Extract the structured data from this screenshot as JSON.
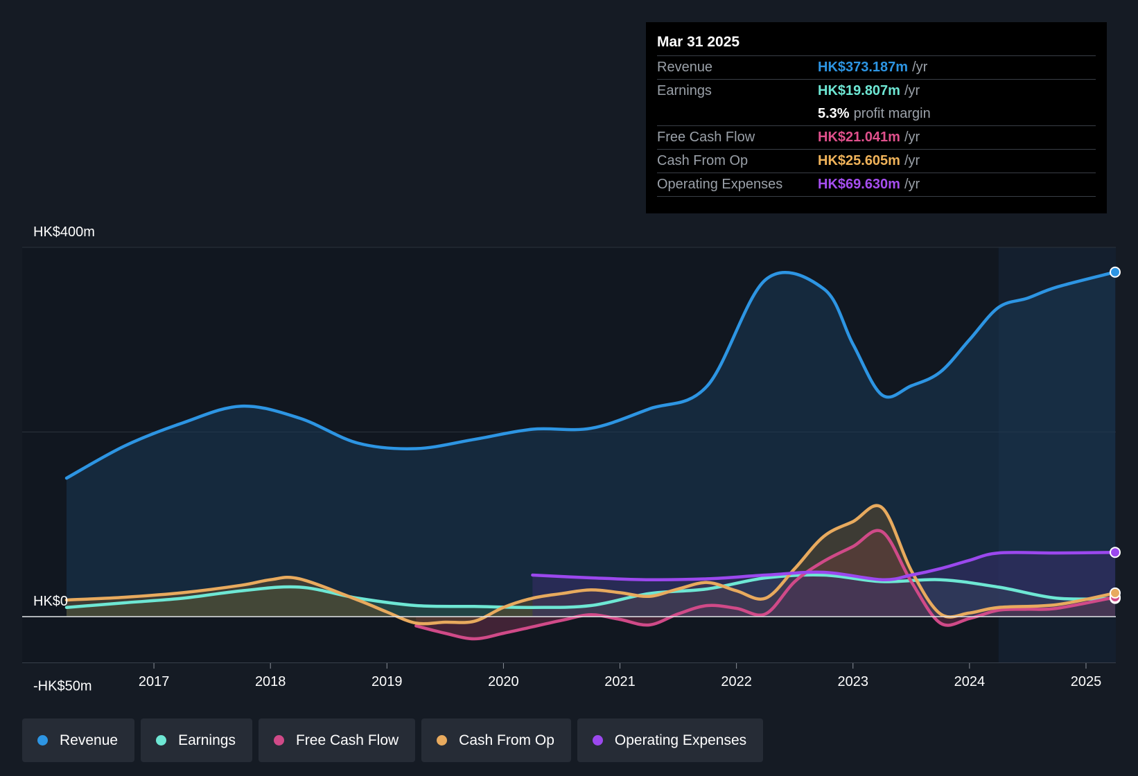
{
  "tooltip": {
    "date": "Mar 31 2025",
    "rows": [
      {
        "label": "Revenue",
        "value": "HK$373.187m",
        "unit": "/yr",
        "color": "#2d95e3"
      },
      {
        "label": "Earnings",
        "value": "HK$19.807m",
        "unit": "/yr",
        "color": "#6ee7d4"
      },
      {
        "label": "",
        "value": "5.3%",
        "unit": "profit margin",
        "color": "#ffffff"
      },
      {
        "label": "Free Cash Flow",
        "value": "HK$21.041m",
        "unit": "/yr",
        "color": "#e0508c"
      },
      {
        "label": "Cash From Op",
        "value": "HK$25.605m",
        "unit": "/yr",
        "color": "#f0b35a"
      },
      {
        "label": "Operating Expenses",
        "value": "HK$69.630m",
        "unit": "/yr",
        "color": "#a64ef0"
      }
    ]
  },
  "legend": [
    {
      "label": "Revenue",
      "color": "#2d95e3"
    },
    {
      "label": "Earnings",
      "color": "#6ee7d4"
    },
    {
      "label": "Free Cash Flow",
      "color": "#d04a88"
    },
    {
      "label": "Cash From Op",
      "color": "#e8aa5e"
    },
    {
      "label": "Operating Expenses",
      "color": "#9b48ee"
    }
  ],
  "chart_data": {
    "type": "line",
    "ylim": [
      -50,
      400
    ],
    "y_tick_labels": [
      "HK$400m",
      "HK$0",
      "-HK$50m"
    ],
    "x_tick_labels": [
      "2017",
      "2018",
      "2019",
      "2020",
      "2021",
      "2022",
      "2023",
      "2024",
      "2025"
    ],
    "forecast_region_start": 2024.25,
    "grid": true,
    "series": [
      {
        "name": "Revenue",
        "color": "#2d95e3",
        "fill": "#1a3955",
        "x": [
          2016.25,
          2016.75,
          2017.25,
          2017.75,
          2018.25,
          2018.75,
          2019.25,
          2019.75,
          2020.25,
          2020.75,
          2021.25,
          2021.75,
          2022.25,
          2022.75,
          2023.0,
          2023.25,
          2023.5,
          2023.75,
          2024.0,
          2024.25,
          2024.5,
          2024.75,
          2025.25
        ],
        "y": [
          150,
          185,
          210,
          228,
          215,
          188,
          182,
          192,
          203,
          204,
          225,
          250,
          365,
          355,
          295,
          240,
          250,
          265,
          300,
          335,
          345,
          357,
          373.187
        ]
      },
      {
        "name": "Earnings",
        "color": "#6ee7d4",
        "fill": "#2e5a4a",
        "x": [
          2016.25,
          2016.75,
          2017.25,
          2017.75,
          2018.25,
          2018.75,
          2019.25,
          2019.75,
          2020.25,
          2020.75,
          2021.25,
          2021.75,
          2022.25,
          2022.75,
          2023.25,
          2023.75,
          2024.25,
          2024.75,
          2025.25
        ],
        "y": [
          10,
          15,
          20,
          28,
          32,
          20,
          12,
          11,
          10,
          12,
          25,
          30,
          42,
          45,
          38,
          40,
          32,
          20,
          19.807
        ]
      },
      {
        "name": "Free Cash Flow",
        "color": "#d04a88",
        "fill": "#6a2e48",
        "x": [
          2019.25,
          2019.5,
          2019.75,
          2020.0,
          2020.25,
          2020.5,
          2020.75,
          2021.0,
          2021.25,
          2021.5,
          2021.75,
          2022.0,
          2022.25,
          2022.5,
          2022.75,
          2023.0,
          2023.25,
          2023.5,
          2023.75,
          2024.0,
          2024.25,
          2024.5,
          2024.75,
          2025.25
        ],
        "y": [
          -10,
          -18,
          -24,
          -18,
          -11,
          -4,
          2,
          -3,
          -9,
          3,
          12,
          9,
          3,
          38,
          60,
          76,
          92,
          38,
          -7,
          -2,
          7,
          8,
          9,
          21.041
        ]
      },
      {
        "name": "Cash From Op",
        "color": "#e8aa5e",
        "fill": "#5e4a2e",
        "x": [
          2016.25,
          2016.75,
          2017.25,
          2017.75,
          2018.0,
          2018.25,
          2018.75,
          2019.0,
          2019.25,
          2019.5,
          2019.75,
          2020.0,
          2020.25,
          2020.5,
          2020.75,
          2021.0,
          2021.25,
          2021.5,
          2021.75,
          2022.0,
          2022.25,
          2022.5,
          2022.75,
          2023.0,
          2023.25,
          2023.5,
          2023.75,
          2024.0,
          2024.25,
          2024.75,
          2025.25
        ],
        "y": [
          18,
          21,
          26,
          34,
          40,
          41,
          18,
          5,
          -7,
          -6,
          -5,
          10,
          20,
          25,
          29,
          26,
          22,
          30,
          37,
          28,
          20,
          52,
          87,
          103,
          118,
          50,
          3,
          4,
          10,
          13,
          25.605
        ]
      },
      {
        "name": "Operating Expenses",
        "color": "#9b48ee",
        "fill": "#382e6a",
        "x": [
          2020.25,
          2020.75,
          2021.25,
          2021.75,
          2022.25,
          2022.75,
          2023.25,
          2023.5,
          2023.75,
          2024.0,
          2024.25,
          2024.75,
          2025.25
        ],
        "y": [
          45,
          42,
          40,
          41,
          45,
          48,
          40,
          45,
          52,
          61,
          69,
          69,
          69.63
        ]
      }
    ]
  }
}
